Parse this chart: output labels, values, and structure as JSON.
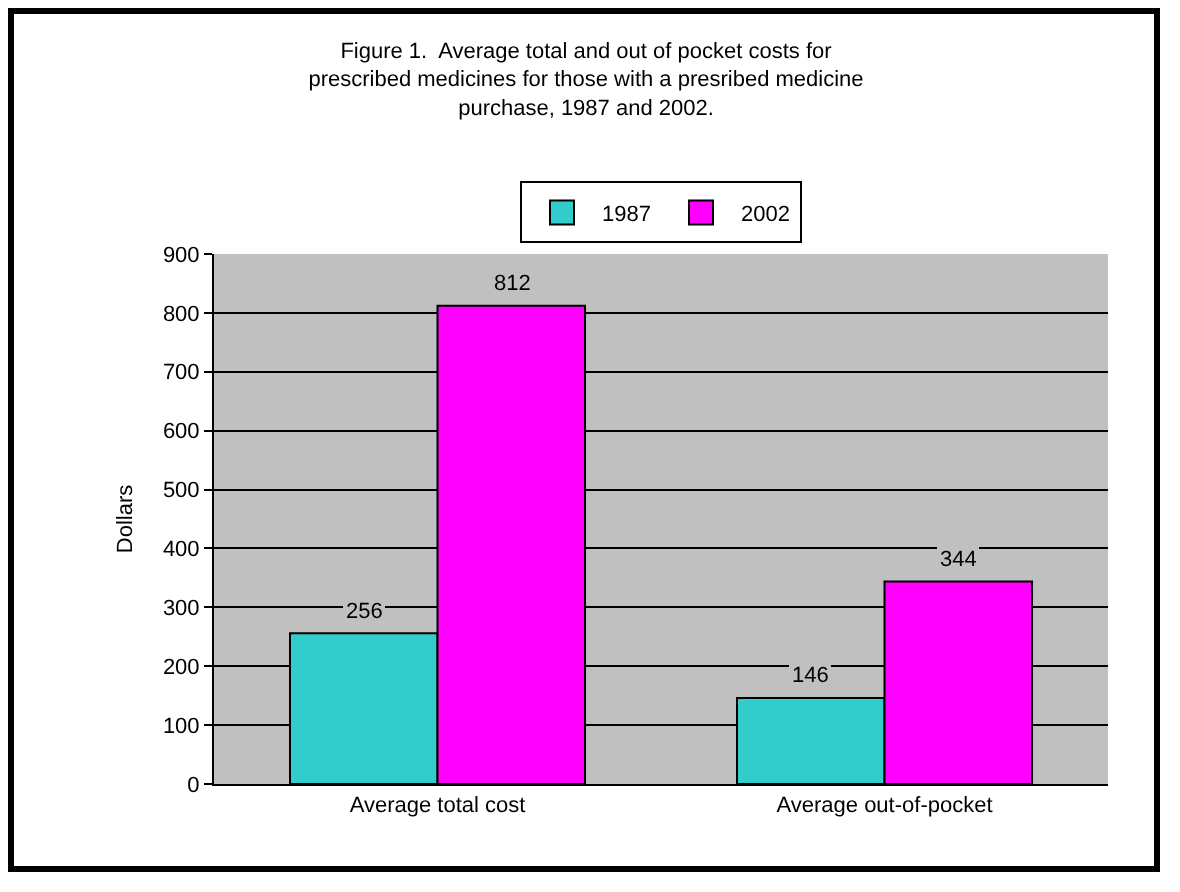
{
  "chart_data": {
    "type": "bar",
    "title": "Figure 1.  Average total and out of pocket costs for prescribed medicines for those with a presribed medicine purchase, 1987 and 2002.",
    "ylabel": "Dollars",
    "categories": [
      "Average total cost",
      "Average out-of-pocket"
    ],
    "series": [
      {
        "name": "1987",
        "color": "#33cccc",
        "values": [
          256,
          146
        ]
      },
      {
        "name": "2002",
        "color": "#ff00ff",
        "values": [
          812,
          344
        ]
      }
    ],
    "ylim": [
      0,
      900
    ],
    "yticks": [
      0,
      100,
      200,
      300,
      400,
      500,
      600,
      700,
      800,
      900
    ],
    "grid": "y",
    "legend": "top",
    "data_labels": true
  }
}
